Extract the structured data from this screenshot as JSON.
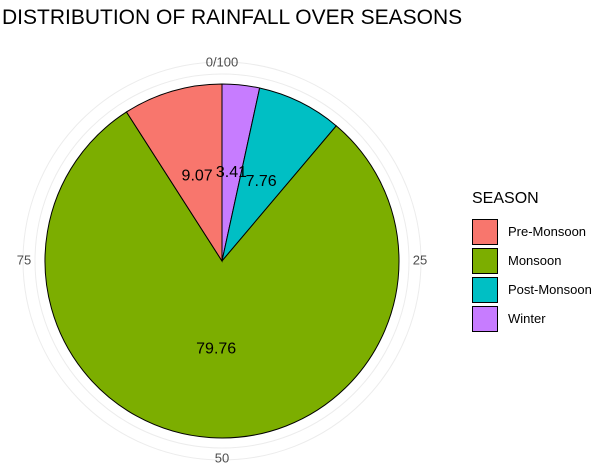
{
  "chart_data": {
    "type": "pie",
    "title": "DISTRIBUTION OF RAINFALL OVER SEASONS",
    "categories": [
      "Pre-Monsoon",
      "Monsoon",
      "Post-Monsoon",
      "Winter"
    ],
    "values": [
      9.07,
      79.76,
      7.76,
      3.41
    ],
    "data_labels": [
      "9.07",
      "79.76",
      "7.76",
      "3.41"
    ],
    "colors": [
      "#F8766D",
      "#7CAE00",
      "#00BFC4",
      "#C77CFF"
    ],
    "slice_order": [
      "Winter",
      "Post-Monsoon",
      "Monsoon",
      "Pre-Monsoon"
    ],
    "direction": "clockwise",
    "start": "top",
    "theta_ticks": [
      {
        "value": 0,
        "label": "0/100"
      },
      {
        "value": 25,
        "label": "25"
      },
      {
        "value": 50,
        "label": "50"
      },
      {
        "value": 75,
        "label": "75"
      }
    ],
    "grid": true,
    "legend": {
      "title": "SEASON",
      "items": [
        "Pre-Monsoon",
        "Monsoon",
        "Post-Monsoon",
        "Winter"
      ],
      "placement": "right"
    }
  }
}
